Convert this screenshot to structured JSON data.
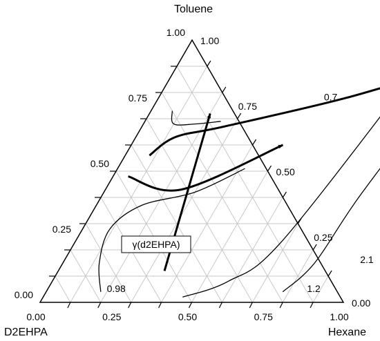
{
  "chart_data": {
    "type": "ternary",
    "vertex_labels": {
      "top": "Toluene",
      "left": "D2EHPA",
      "right": "Hexane"
    },
    "bottom_ticks": [
      "0.00",
      "0.25",
      "0.50",
      "0.75",
      "1.00"
    ],
    "left_ticks": [
      "1.00",
      "0.75",
      "0.50",
      "0.25",
      "0.00"
    ],
    "right_ticks": [
      "0.00",
      "0.25",
      "0.50",
      "0.75",
      "1.00"
    ],
    "contour_labels": [
      "0.7",
      "0.98",
      "1.2",
      "2.1"
    ],
    "series_label": "γ(d2EHPA)",
    "grid": true,
    "contours": [
      {
        "value": 0.98,
        "points": [
          [
            0.18,
            0.04
          ],
          [
            0.12,
            0.15
          ],
          [
            0.09,
            0.28
          ],
          [
            0.15,
            0.37
          ],
          [
            0.3,
            0.42
          ],
          [
            0.42,
            0.51
          ]
        ]
      },
      {
        "value": 0.7,
        "points": [
          [
            0.07,
            0.73
          ],
          [
            0.1,
            0.68
          ],
          [
            0.17,
            0.68
          ],
          [
            0.25,
            0.69
          ]
        ]
      },
      {
        "value": 1.2,
        "points": [
          [
            0.46,
            0.02
          ],
          [
            0.58,
            0.08
          ],
          [
            0.68,
            0.23
          ],
          [
            0.79,
            0.85
          ]
        ]
      },
      {
        "value": 2.1,
        "points": [
          [
            0.78,
            0.04
          ],
          [
            0.83,
            0.15
          ],
          [
            0.85,
            0.4
          ],
          [
            0.91,
            0.8
          ]
        ]
      }
    ],
    "trajectories": [
      {
        "points": [
          [
            0.08,
            0.56
          ],
          [
            0.13,
            0.63
          ],
          [
            0.27,
            0.67
          ],
          [
            0.62,
            0.78
          ],
          [
            0.93,
            0.91
          ]
        ]
      },
      {
        "points": [
          [
            0.35,
            0.12
          ],
          [
            0.29,
            0.36
          ],
          [
            0.2,
            0.72
          ]
        ]
      },
      {
        "points": [
          [
            0.05,
            0.48
          ],
          [
            0.25,
            0.43
          ],
          [
            0.5,
            0.6
          ]
        ]
      }
    ]
  }
}
